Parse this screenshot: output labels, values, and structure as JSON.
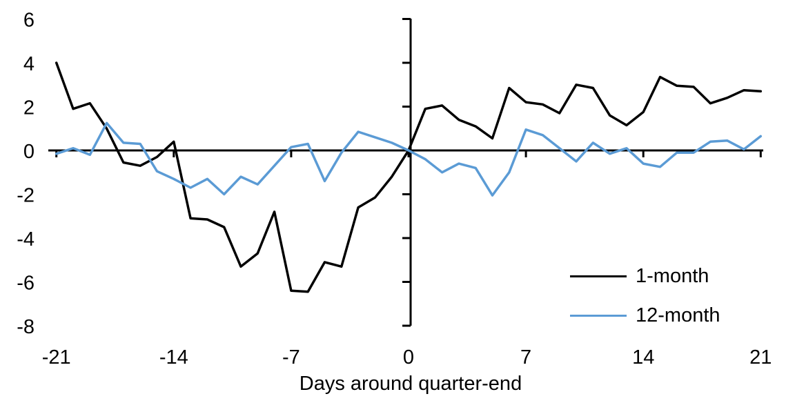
{
  "chart_data": {
    "type": "line",
    "title": "",
    "xlabel": "Days around quarter-end",
    "ylabel": "",
    "xlim": [
      -21,
      21
    ],
    "ylim": [
      -8,
      6
    ],
    "grid": false,
    "legend_position": "bottom-right",
    "xticks": [
      -21,
      -14,
      -7,
      0,
      7,
      14,
      21
    ],
    "yticks": [
      6,
      4,
      2,
      0,
      -2,
      -4,
      -6,
      -8
    ],
    "x": [
      -21,
      -20,
      -19,
      -18,
      -17,
      -16,
      -15,
      -14,
      -13,
      -12,
      -11,
      -10,
      -9,
      -8,
      -7,
      -6,
      -5,
      -4,
      -3,
      -2,
      -1,
      0,
      1,
      2,
      3,
      4,
      5,
      6,
      7,
      8,
      9,
      10,
      11,
      12,
      13,
      14,
      15,
      16,
      17,
      18,
      19,
      20,
      21
    ],
    "series": [
      {
        "name": "1-month",
        "color": "#000000",
        "values": [
          4.0,
          1.9,
          2.15,
          1.0,
          -0.55,
          -0.7,
          -0.3,
          0.4,
          -3.1,
          -3.15,
          -3.5,
          -5.3,
          -4.7,
          -2.8,
          -6.4,
          -6.45,
          -5.1,
          -5.3,
          -2.6,
          -2.15,
          -1.2,
          0.0,
          1.9,
          2.05,
          1.4,
          1.1,
          0.55,
          2.85,
          2.2,
          2.1,
          1.7,
          3.0,
          2.85,
          1.6,
          1.15,
          1.75,
          3.35,
          2.95,
          2.9,
          2.15,
          2.4,
          2.75,
          2.7
        ]
      },
      {
        "name": "12-month",
        "color": "#5B9BD5",
        "values": [
          -0.15,
          0.1,
          -0.2,
          1.25,
          0.35,
          0.3,
          -0.95,
          -1.3,
          -1.7,
          -1.3,
          -2.0,
          -1.2,
          -1.55,
          -0.7,
          0.15,
          0.3,
          -1.4,
          -0.1,
          0.85,
          0.6,
          0.35,
          0.0,
          -0.4,
          -1.0,
          -0.6,
          -0.8,
          -2.05,
          -1.0,
          0.95,
          0.7,
          0.1,
          -0.5,
          0.35,
          -0.15,
          0.1,
          -0.6,
          -0.75,
          -0.1,
          -0.1,
          0.4,
          0.45,
          0.05,
          0.65
        ]
      }
    ]
  }
}
